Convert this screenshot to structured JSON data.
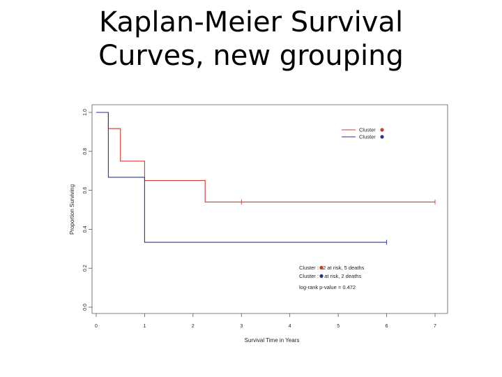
{
  "slide": {
    "title_line1": "Kaplan-Meier Survival",
    "title_line2": "Curves, new grouping"
  },
  "chart_data": {
    "type": "line",
    "title": "Kaplan-Meier Survival Curves, new grouping",
    "xlabel": "Survival Time in Years",
    "ylabel": "Proportion Surviving",
    "xlim": [
      0,
      7
    ],
    "ylim": [
      0,
      1
    ],
    "x_ticks": [
      "0",
      "1",
      "2",
      "3",
      "4",
      "5",
      "6",
      "7"
    ],
    "y_ticks": [
      "0.0",
      "0.2",
      "0.4",
      "0.6",
      "0.8",
      "1.0"
    ],
    "grid": false,
    "step": true,
    "legend_position": "top-right",
    "series": [
      {
        "name": "Cluster",
        "legend_label": "Cluster",
        "color": "#d03a2f",
        "points": [
          [
            0,
            1.0
          ],
          [
            0.25,
            1.0
          ],
          [
            0.25,
            0.917
          ],
          [
            0.5,
            0.917
          ],
          [
            0.5,
            0.75
          ],
          [
            1.0,
            0.75
          ],
          [
            1.0,
            0.65
          ],
          [
            2.25,
            0.65
          ],
          [
            2.25,
            0.54
          ],
          [
            7.0,
            0.54
          ]
        ],
        "censored": [
          [
            3.0,
            0.54
          ],
          [
            7.0,
            0.54
          ]
        ]
      },
      {
        "name": "Cluster",
        "legend_label": "Cluster",
        "color": "#2a3596",
        "points": [
          [
            0,
            1.0
          ],
          [
            0.25,
            1.0
          ],
          [
            0.25,
            0.667
          ],
          [
            1.0,
            0.667
          ],
          [
            1.0,
            0.333
          ],
          [
            6.0,
            0.333
          ]
        ],
        "censored": [
          [
            6.0,
            0.333
          ]
        ]
      }
    ],
    "annotations": {
      "risk_line1": "Cluster : 12 at risk, 5 deaths",
      "risk_line2": "Cluster : 3 at risk, 2 deaths",
      "pvalue": "log-rank p-value = 0.472"
    }
  }
}
